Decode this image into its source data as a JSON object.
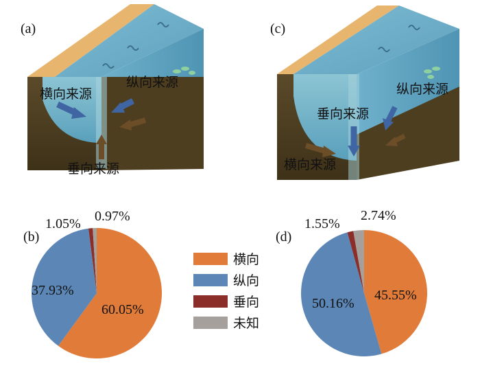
{
  "panel_labels": {
    "a": "(a)",
    "b": "(b)",
    "c": "(c)",
    "d": "(d)"
  },
  "diagram_a": {
    "lateral": "横向来源",
    "longitudinal": "纵向来源",
    "vertical": "垂向来源"
  },
  "diagram_c": {
    "lateral": "横向来源",
    "longitudinal": "纵向来源",
    "vertical": "垂向来源"
  },
  "legend": [
    {
      "label": "横向",
      "color": "#E07B39"
    },
    {
      "label": "纵向",
      "color": "#5B86B5"
    },
    {
      "label": "垂向",
      "color": "#8B2E2A"
    },
    {
      "label": "未知",
      "color": "#A6A09C"
    }
  ],
  "chart_data": [
    {
      "type": "pie",
      "panel": "(b)",
      "slices": [
        {
          "category": "横向",
          "value": 60.05,
          "label": "60.05%"
        },
        {
          "category": "纵向",
          "value": 37.93,
          "label": "37.93%"
        },
        {
          "category": "垂向",
          "value": 1.05,
          "label": "1.05%"
        },
        {
          "category": "未知",
          "value": 0.97,
          "label": "0.97%"
        }
      ]
    },
    {
      "type": "pie",
      "panel": "(d)",
      "slices": [
        {
          "category": "横向",
          "value": 45.55,
          "label": "45.55%"
        },
        {
          "category": "纵向",
          "value": 50.16,
          "label": "50.16%"
        },
        {
          "category": "垂向",
          "value": 1.55,
          "label": "1.55%"
        },
        {
          "category": "未知",
          "value": 2.74,
          "label": "2.74%"
        }
      ]
    }
  ]
}
